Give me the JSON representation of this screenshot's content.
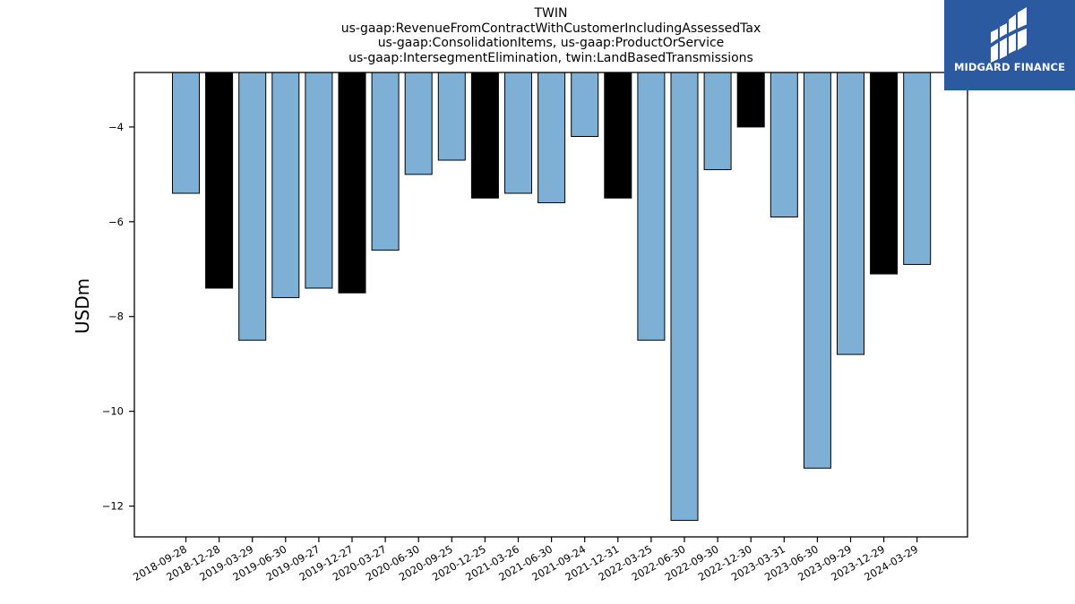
{
  "chart_data": {
    "type": "bar",
    "title_lines": [
      "TWIN",
      "us-gaap:RevenueFromContractWithCustomerIncludingAssessedTax",
      "us-gaap:ConsolidationItems, us-gaap:ProductOrService",
      "us-gaap:IntersegmentElimination, twin:LandBasedTransmissions"
    ],
    "xlabel": "",
    "ylabel": "USDm",
    "ylim": [
      -12.65,
      -2.85
    ],
    "yticks": [
      -4,
      -6,
      -8,
      -10,
      -12
    ],
    "grid": false,
    "categories": [
      "2018-09-28",
      "2018-12-28",
      "2019-03-29",
      "2019-06-30",
      "2019-09-27",
      "2019-12-27",
      "2020-03-27",
      "2020-06-30",
      "2020-09-25",
      "2020-12-25",
      "2021-03-26",
      "2021-06-30",
      "2021-09-24",
      "2021-12-31",
      "2022-03-25",
      "2022-06-30",
      "2022-09-30",
      "2022-12-30",
      "2023-03-31",
      "2023-06-30",
      "2023-09-29",
      "2023-12-29",
      "2024-03-29"
    ],
    "values": [
      -5.4,
      -7.4,
      -8.5,
      -7.6,
      -7.4,
      -7.5,
      -6.6,
      -5.0,
      -4.7,
      -5.5,
      -5.4,
      -5.6,
      -4.2,
      -5.5,
      -8.5,
      -12.3,
      -4.9,
      -4.0,
      -5.9,
      -11.2,
      -8.8,
      -7.1,
      -6.9
    ],
    "bar_colors": [
      "#7eb0d5",
      "#000000",
      "#7eb0d5",
      "#7eb0d5",
      "#7eb0d5",
      "#000000",
      "#7eb0d5",
      "#7eb0d5",
      "#7eb0d5",
      "#000000",
      "#7eb0d5",
      "#7eb0d5",
      "#7eb0d5",
      "#000000",
      "#7eb0d5",
      "#7eb0d5",
      "#7eb0d5",
      "#000000",
      "#7eb0d5",
      "#7eb0d5",
      "#7eb0d5",
      "#000000",
      "#7eb0d5"
    ]
  },
  "brand": {
    "name": "MIDGARD FINANCE",
    "color": "#2c5aa0",
    "icon": "midgard-logo-icon"
  }
}
